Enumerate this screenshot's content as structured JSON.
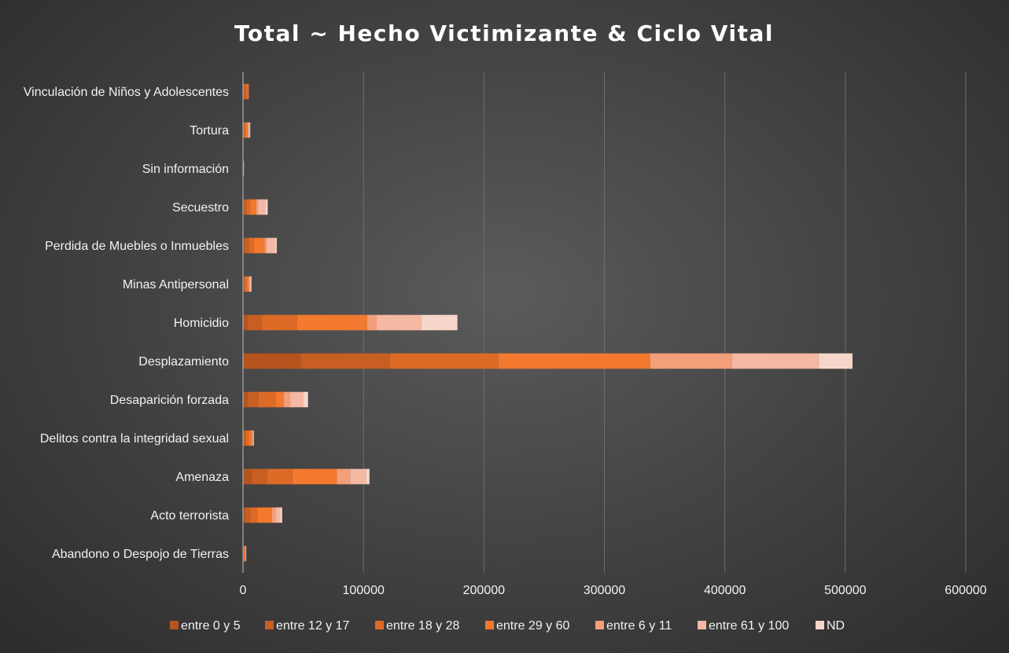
{
  "chart_data": {
    "type": "bar",
    "orientation": "horizontal",
    "stacked": true,
    "title": "Total ~ Hecho Victimizante & Ciclo Vital",
    "xlim": [
      0,
      600000
    ],
    "x_ticks": [
      0,
      100000,
      200000,
      300000,
      400000,
      500000,
      600000
    ],
    "grid": true,
    "legend_position": "bottom",
    "categories": [
      "Abandono o Despojo de Tierras",
      "Acto terrorista",
      "Amenaza",
      "Delitos contra la integridad sexual",
      "Desaparición forzada",
      "Desplazamiento",
      "Homicidio",
      "Minas Antipersonal",
      "Perdida de Muebles o Inmuebles",
      "Secuestro",
      "Sin información",
      "Tortura",
      "Vinculación de Niños y Adolescentes"
    ],
    "series": [
      {
        "name": "entre 0 y 5",
        "color": "#b5541e",
        "values": [
          200,
          2000,
          7000,
          400,
          4000,
          48000,
          4000,
          500,
          1500,
          1000,
          50,
          300,
          100
        ]
      },
      {
        "name": "entre 12 y 17",
        "color": "#c85f22",
        "values": [
          400,
          4000,
          13000,
          2000,
          9000,
          74000,
          12000,
          1000,
          3500,
          2000,
          100,
          700,
          2000
        ]
      },
      {
        "name": "entre 18 y 28",
        "color": "#de6a28",
        "values": [
          500,
          6000,
          21000,
          2500,
          14000,
          90000,
          29000,
          1200,
          4000,
          3000,
          150,
          1000,
          2000
        ]
      },
      {
        "name": "entre 29 y 60",
        "color": "#f2792e",
        "values": [
          800,
          12000,
          37000,
          2500,
          7000,
          126000,
          58000,
          2000,
          9000,
          5000,
          300,
          2000,
          500
        ]
      },
      {
        "name": "entre 6 y 11",
        "color": "#f29f7a",
        "values": [
          300,
          3000,
          11000,
          1000,
          5000,
          68000,
          8000,
          600,
          1500,
          1500,
          50,
          400,
          200
        ]
      },
      {
        "name": "entre 61 y 100",
        "color": "#f4b8a3",
        "values": [
          400,
          4000,
          13000,
          500,
          11000,
          72000,
          37000,
          1200,
          7000,
          6000,
          100,
          1300,
          0
        ]
      },
      {
        "name": "ND",
        "color": "#f7d6ca",
        "values": [
          100,
          1500,
          3000,
          200,
          4000,
          28000,
          30000,
          500,
          1500,
          2000,
          50,
          300,
          0
        ]
      }
    ]
  }
}
